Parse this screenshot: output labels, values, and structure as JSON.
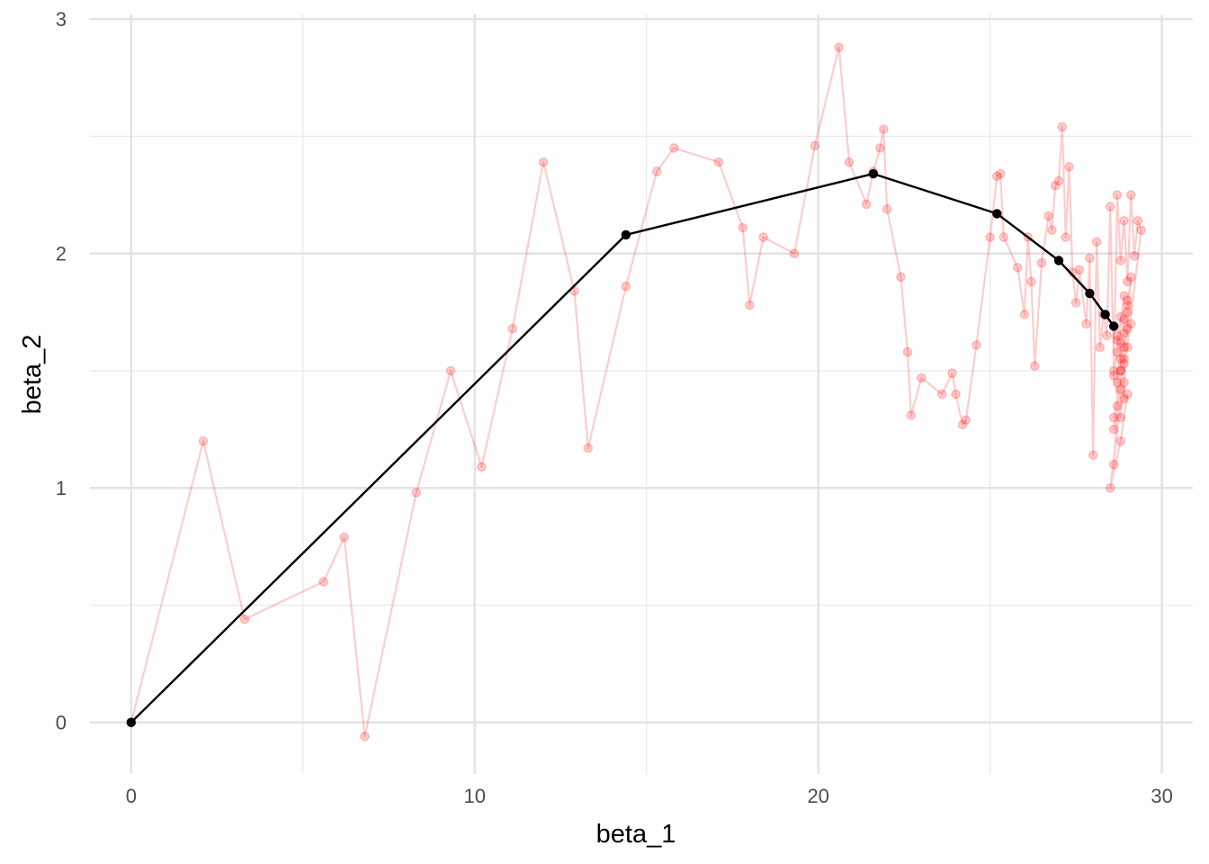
{
  "chart_data": {
    "type": "scatter",
    "xlabel": "beta_1",
    "ylabel": "beta_2",
    "xlim": [
      -1.2,
      30.9
    ],
    "ylim": [
      -0.22,
      3.02
    ],
    "x_ticks": [
      0,
      10,
      20,
      30
    ],
    "y_ticks": [
      0,
      1,
      2,
      3
    ],
    "grid": true,
    "legend": "none",
    "series": [
      {
        "style": "red translucent points joined by a path",
        "color": "#ff0000",
        "x": [
          0.0,
          2.1,
          3.3,
          5.6,
          6.2,
          6.8,
          8.3,
          9.3,
          10.2,
          11.1,
          12.0,
          12.9,
          13.3,
          14.4,
          15.3,
          15.8,
          17.1,
          17.8,
          18.0,
          18.4,
          19.3,
          19.9,
          20.6,
          20.9,
          21.4,
          21.6,
          21.8,
          21.9,
          22.0,
          22.4,
          22.6,
          22.7,
          23.0,
          23.6,
          23.9,
          24.0,
          24.2,
          24.3,
          24.6,
          25.0,
          25.2,
          25.3,
          25.4,
          25.8,
          26.0,
          26.1,
          26.2,
          26.3,
          26.5,
          26.7,
          26.8,
          26.9,
          27.0,
          27.1,
          27.2,
          27.3,
          27.4,
          27.5,
          27.6,
          27.8,
          27.9,
          28.0,
          28.1,
          28.2,
          28.3,
          28.4,
          28.5,
          28.6,
          28.7,
          28.8,
          28.9,
          29.0,
          29.1,
          29.2,
          29.3,
          29.4,
          28.5,
          28.8,
          29.0,
          28.6,
          28.9,
          29.1,
          28.7,
          28.8,
          28.9,
          29.0,
          28.6,
          28.8,
          29.0,
          28.7,
          28.9,
          28.6,
          28.8,
          29.1,
          28.9,
          28.7,
          29.0,
          28.8,
          28.6,
          28.9,
          28.7,
          29.0,
          28.8,
          28.9,
          28.7,
          28.8,
          29.0,
          28.9,
          28.8,
          28.9
        ],
        "y": [
          0.0,
          1.2,
          0.44,
          0.6,
          0.79,
          -0.06,
          0.98,
          1.5,
          1.09,
          1.68,
          2.39,
          1.84,
          1.17,
          1.86,
          2.35,
          2.45,
          2.39,
          2.11,
          1.78,
          2.07,
          2.0,
          2.46,
          2.88,
          2.39,
          2.21,
          2.35,
          2.45,
          2.53,
          2.19,
          1.9,
          1.58,
          1.31,
          1.47,
          1.4,
          1.49,
          1.4,
          1.27,
          1.29,
          1.61,
          2.07,
          2.33,
          2.34,
          2.07,
          1.94,
          1.74,
          2.07,
          1.88,
          1.52,
          1.96,
          2.16,
          2.1,
          2.29,
          2.31,
          2.54,
          2.07,
          2.37,
          1.92,
          1.79,
          1.93,
          1.7,
          1.98,
          1.14,
          2.05,
          1.6,
          1.74,
          1.65,
          2.2,
          1.5,
          2.25,
          1.97,
          2.14,
          1.88,
          2.25,
          1.99,
          2.14,
          2.1,
          1.0,
          1.2,
          1.4,
          1.3,
          1.55,
          1.7,
          1.45,
          1.62,
          1.38,
          1.8,
          1.25,
          1.5,
          1.6,
          1.35,
          1.72,
          1.1,
          1.55,
          1.9,
          1.45,
          1.65,
          1.75,
          1.3,
          1.48,
          1.82,
          1.58,
          1.68,
          1.42,
          1.53,
          1.63,
          1.73,
          1.78,
          1.6,
          1.5,
          1.66
        ]
      },
      {
        "style": "black points joined by a path",
        "color": "#000000",
        "x": [
          0.0,
          14.4,
          21.6,
          25.2,
          27.0,
          27.9,
          28.35,
          28.6
        ],
        "y": [
          0.0,
          2.08,
          2.34,
          2.17,
          1.97,
          1.83,
          1.74,
          1.69
        ]
      }
    ]
  }
}
